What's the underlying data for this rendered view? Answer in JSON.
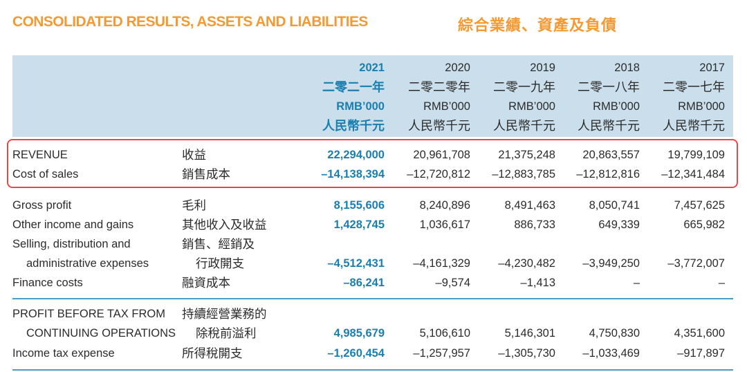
{
  "title_en": "CONSOLIDATED RESULTS, ASSETS AND LIABILITIES",
  "title_zh": "綜合業績、資產及負債",
  "columns": [
    {
      "year": "2021",
      "year_zh": "二零二一年",
      "unit": "RMB’000",
      "unit_zh": "人民幣千元",
      "highlight": true
    },
    {
      "year": "2020",
      "year_zh": "二零二零年",
      "unit": "RMB’000",
      "unit_zh": "人民幣千元"
    },
    {
      "year": "2019",
      "year_zh": "二零一九年",
      "unit": "RMB’000",
      "unit_zh": "人民幣千元"
    },
    {
      "year": "2018",
      "year_zh": "二零一八年",
      "unit": "RMB’000",
      "unit_zh": "人民幣千元"
    },
    {
      "year": "2017",
      "year_zh": "二零一七年",
      "unit": "RMB’000",
      "unit_zh": "人民幣千元"
    }
  ],
  "rows": [
    {
      "label": "REVENUE",
      "label_zh": "收益",
      "values": [
        "22,294,000",
        "20,961,708",
        "21,375,248",
        "20,863,557",
        "19,799,109"
      ]
    },
    {
      "label": "Cost of sales",
      "label_zh": "銷售成本",
      "values": [
        "–14,138,394",
        "–12,720,812",
        "–12,883,785",
        "–12,812,816",
        "–12,341,484"
      ]
    },
    {
      "label": "Gross profit",
      "label_zh": "毛利",
      "values": [
        "8,155,606",
        "8,240,896",
        "8,491,463",
        "8,050,741",
        "7,457,625"
      ]
    },
    {
      "label": "Other income and gains",
      "label_zh": "其他收入及收益",
      "values": [
        "1,428,745",
        "1,036,617",
        "886,733",
        "649,339",
        "665,982"
      ]
    },
    {
      "label": "Selling, distribution and",
      "label_zh": "銷售、經銷及",
      "values": []
    },
    {
      "label": "administrative expenses",
      "label_zh": "行政開支",
      "indent": true,
      "values": [
        "–4,512,431",
        "–4,161,329",
        "–4,230,482",
        "–3,949,250",
        "–3,772,007"
      ]
    },
    {
      "label": "Finance costs",
      "label_zh": "融資成本",
      "values": [
        "–86,241",
        "–9,574",
        "–1,413",
        "–",
        "–"
      ]
    },
    {
      "label": "PROFIT BEFORE TAX FROM",
      "label_zh": "持續經營業務的",
      "values": []
    },
    {
      "label": "CONTINUING OPERATIONS",
      "label_zh": "除稅前溢利",
      "indent": true,
      "values": [
        "4,985,679",
        "5,106,610",
        "5,146,301",
        "4,750,830",
        "4,351,600"
      ]
    },
    {
      "label": "Income tax expense",
      "label_zh": "所得稅開支",
      "values": [
        "–1,260,454",
        "–1,257,957",
        "–1,305,730",
        "–1,033,469",
        "–917,897"
      ]
    }
  ],
  "colors": {
    "title": "#f39a32",
    "highlight": "#1a7fae",
    "header_bg": "#cadfeb",
    "box": "#e8474a",
    "rule": "#4a9cc0"
  }
}
